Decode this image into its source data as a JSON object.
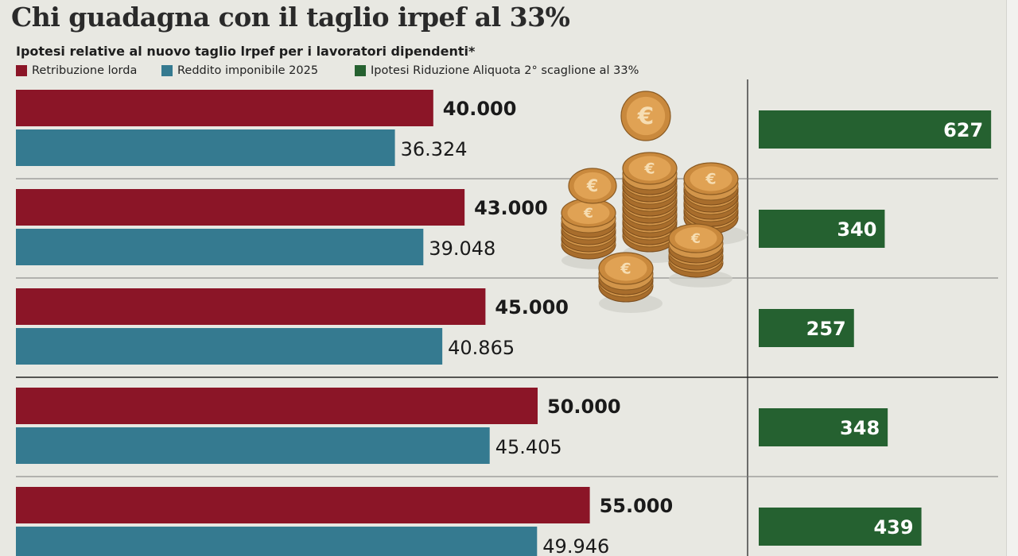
{
  "title": "Chi guadagna con il taglio irpef al 33%",
  "subtitle": "Ipotesi relative al nuovo taglio lrpef per i lavoratori dipendenti*",
  "legend": [
    {
      "label": "Retribuzione lorda",
      "color": "#8b1527"
    },
    {
      "label": "Reddito imponibile 2025",
      "color": "#357a90"
    },
    {
      "label": "Ipotesi Riduzione Aliquota 2° scaglione al 33%",
      "color": "#256130"
    }
  ],
  "colors": {
    "lorda": "#8b1527",
    "imponibile": "#357a90",
    "riduzione": "#256130"
  },
  "decoration_icon": "euro-coins-icon",
  "chart_data": {
    "type": "bar",
    "title": "Chi guadagna con il taglio irpef al 33%",
    "subtitle": "Ipotesi relative al nuovo taglio lrpef per i lavoratori dipendenti*",
    "orientation": "horizontal",
    "legend_position": "top",
    "grid": false,
    "groups": [
      {
        "lorda": 40000,
        "imponibile": 36324,
        "riduzione": 627,
        "labels": {
          "lorda": "40.000",
          "imponibile": "36.324",
          "riduzione": "627"
        }
      },
      {
        "lorda": 43000,
        "imponibile": 39048,
        "riduzione": 340,
        "labels": {
          "lorda": "43.000",
          "imponibile": "39.048",
          "riduzione": "340"
        }
      },
      {
        "lorda": 45000,
        "imponibile": 40865,
        "riduzione": 257,
        "labels": {
          "lorda": "45.000",
          "imponibile": "40.865",
          "riduzione": "257"
        }
      },
      {
        "lorda": 50000,
        "imponibile": 45405,
        "riduzione": 348,
        "labels": {
          "lorda": "50.000",
          "imponibile": "45.405",
          "riduzione": "348"
        }
      },
      {
        "lorda": 55000,
        "imponibile": 49946,
        "riduzione": 439,
        "labels": {
          "lorda": "55.000",
          "imponibile": "49.946",
          "riduzione": "439"
        }
      }
    ],
    "series": [
      {
        "name": "Retribuzione lorda",
        "key": "lorda"
      },
      {
        "name": "Reddito imponibile 2025",
        "key": "imponibile"
      },
      {
        "name": "Ipotesi Riduzione Aliquota 2° scaglione al 33%",
        "key": "riduzione"
      }
    ]
  }
}
